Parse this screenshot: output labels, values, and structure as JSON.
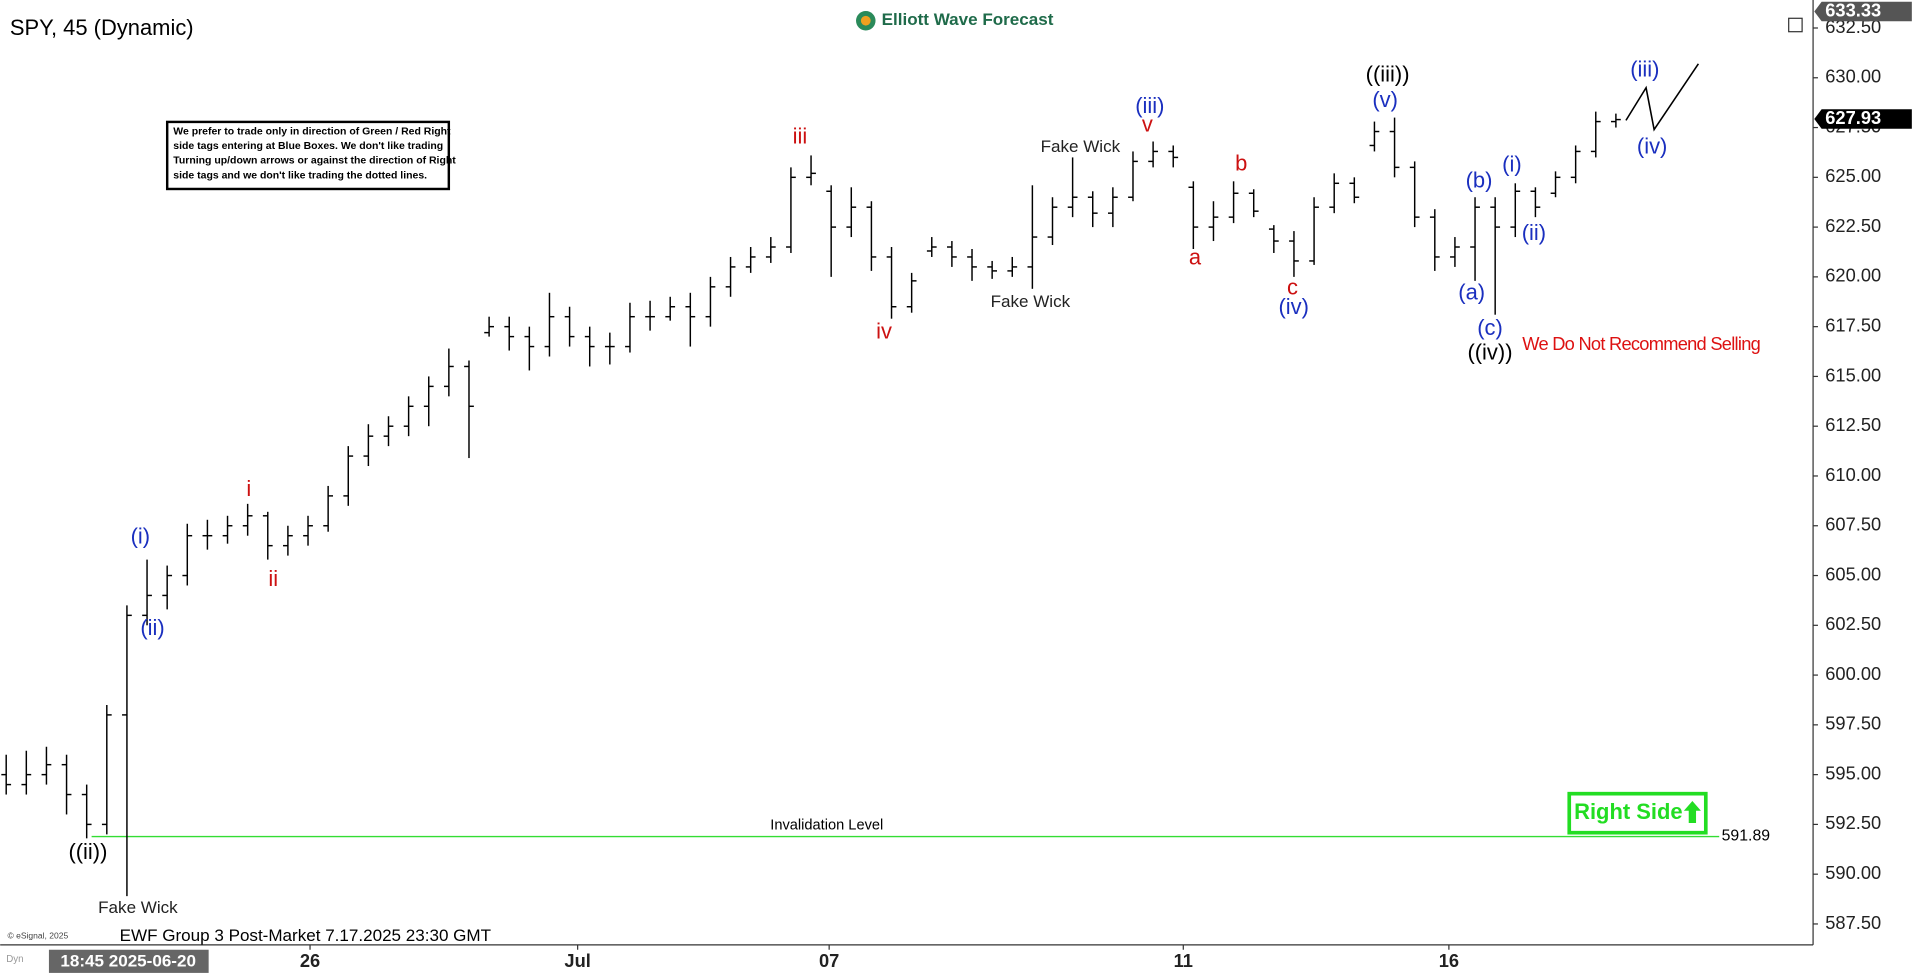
{
  "header": {
    "logo": "Elliott Wave Forecast"
  },
  "chart_data": {
    "type": "ohlc",
    "title": "SPY, 45 (Dynamic)",
    "color": "#000000",
    "open": [
      595,
      594.5,
      595,
      595.5,
      594,
      592.5,
      598,
      603,
      604,
      605,
      607,
      607,
      607.5,
      608,
      606.5,
      607,
      607.5,
      609,
      611,
      612,
      612.5,
      613.5,
      614.5,
      615.5,
      617.2,
      617.5,
      617,
      616.5,
      618,
      617,
      616.5,
      616.5,
      618,
      618,
      618.5,
      618,
      619.5,
      620.5,
      621,
      621.5,
      625,
      624.3,
      622.5,
      623.5,
      621,
      618.5,
      621.3,
      621.5,
      621,
      620.5,
      620.3,
      620.5,
      622,
      623.5,
      624,
      623.2,
      624,
      625.8,
      626.3,
      624.5,
      622.5,
      623,
      624.2,
      622.4,
      621.8,
      620.8,
      623.5,
      624.7,
      626.6,
      627.3,
      625.5,
      623,
      621,
      621.5,
      623.5,
      622.5,
      624.3,
      624.2,
      625,
      626.3,
      627.8
    ],
    "high": [
      596,
      596.2,
      596.4,
      596,
      594.5,
      598.5,
      603.5,
      605.8,
      605.5,
      607.6,
      607.8,
      608,
      608.6,
      608.2,
      607.5,
      608,
      609.5,
      611.5,
      612.6,
      613,
      614,
      615,
      616.4,
      615.8,
      618,
      618,
      617.5,
      619.2,
      618.5,
      617.5,
      617.2,
      618.7,
      618.8,
      619,
      619.2,
      620,
      621,
      621.5,
      622,
      625.5,
      626.1,
      624.6,
      624.5,
      623.8,
      621.5,
      620.2,
      622,
      621.8,
      621.4,
      620.8,
      621,
      624.6,
      624,
      626,
      624.3,
      624.5,
      626.3,
      626.8,
      626.6,
      624.8,
      623.8,
      624.8,
      624.4,
      622.6,
      622.3,
      624,
      625.2,
      625,
      627.8,
      628,
      625.8,
      623.4,
      622,
      624,
      624,
      624.7,
      624.5,
      625.3,
      626.6,
      628.3,
      628.2
    ],
    "low": [
      594,
      594,
      594.5,
      593,
      591.8,
      592,
      588.9,
      602.5,
      603.3,
      604.5,
      606.3,
      606.6,
      607,
      605.8,
      606,
      606.5,
      607.2,
      608.5,
      610.5,
      611.5,
      612,
      612.5,
      614,
      610.9,
      617,
      616.3,
      615.3,
      616,
      616.5,
      615.5,
      615.6,
      616.2,
      617.3,
      617.8,
      616.5,
      617.5,
      619,
      620.2,
      620.7,
      621.2,
      624.6,
      620,
      622,
      620.3,
      617.9,
      618.2,
      621,
      620.5,
      619.8,
      619.9,
      620,
      619.4,
      621.6,
      623,
      622.5,
      622.5,
      623.8,
      625.5,
      625.5,
      621.4,
      621.8,
      622.7,
      623,
      621.2,
      620,
      620.6,
      623.2,
      623.7,
      626.3,
      625,
      622.5,
      620.3,
      620.5,
      619.8,
      618.1,
      622,
      623,
      624,
      624.7,
      626,
      627.5
    ],
    "close": [
      594.5,
      595,
      595.5,
      594,
      592.5,
      598,
      603,
      604,
      605,
      607,
      607,
      607.5,
      608,
      606.5,
      607,
      607.5,
      609,
      611,
      612,
      612.5,
      613.5,
      614.5,
      615.5,
      613.5,
      617.5,
      617,
      616.5,
      618,
      617,
      616.5,
      616.5,
      618,
      618,
      618.5,
      618,
      619.5,
      620.5,
      621,
      621.5,
      625,
      625.2,
      622.5,
      623.5,
      621,
      618.5,
      619.8,
      621.5,
      621,
      620.5,
      620.3,
      620.5,
      622,
      623.5,
      624,
      623.2,
      624,
      625.8,
      626.3,
      626,
      622.5,
      623,
      624.2,
      623.3,
      621.8,
      620.8,
      623.5,
      624.7,
      624,
      627.3,
      625.5,
      623,
      621,
      621.5,
      623.5,
      622.5,
      624.3,
      623.5,
      625,
      626.3,
      627.8,
      627.9
    ],
    "xlim": [
      -0.3,
      89.8
    ],
    "xticks": [
      {
        "value": 15.1,
        "label": "26"
      },
      {
        "value": 28.4,
        "label": "Jul"
      },
      {
        "value": 40.9,
        "label": "07"
      },
      {
        "value": 58.5,
        "label": "11"
      },
      {
        "value": 71.7,
        "label": "16"
      }
    ],
    "ylim": [
      586.45,
      633.6
    ],
    "yticks": [
      {
        "value": 587.5,
        "label": "587.50"
      },
      {
        "value": 590,
        "label": "590.00"
      },
      {
        "value": 592.5,
        "label": "592.50"
      },
      {
        "value": 595,
        "label": "595.00"
      },
      {
        "value": 597.5,
        "label": "597.50"
      },
      {
        "value": 600,
        "label": "600.00"
      },
      {
        "value": 602.5,
        "label": "602.50"
      },
      {
        "value": 605,
        "label": "605.00"
      },
      {
        "value": 607.5,
        "label": "607.50"
      },
      {
        "value": 610,
        "label": "610.00"
      },
      {
        "value": 612.5,
        "label": "612.50"
      },
      {
        "value": 615,
        "label": "615.00"
      },
      {
        "value": 617.5,
        "label": "617.50"
      },
      {
        "value": 620,
        "label": "620.00"
      },
      {
        "value": 622.5,
        "label": "622.50"
      },
      {
        "value": 625,
        "label": "625.00"
      },
      {
        "value": 627.5,
        "label": "627.50"
      },
      {
        "value": 630,
        "label": "630.00"
      },
      {
        "value": 632.5,
        "label": "632.50"
      }
    ],
    "grid": false,
    "top_price": 633.33,
    "last_price": 627.93,
    "invalidation": {
      "level": 591.89,
      "label": "Invalidation Level",
      "color": "#33dd33"
    },
    "projection": {
      "x": [
        80.5,
        81.5,
        81.9,
        84.1
      ],
      "values": [
        627.86,
        629.5,
        627.4,
        630.7
      ]
    },
    "note": [
      "We prefer to trade only in direction of Green / Red Right",
      "side tags entering at Blue Boxes. We don't like trading",
      "Turning up/down arrows or against the direction of Right",
      "side tags and we don't like trading the dotted lines."
    ],
    "right_side": {
      "text": "Right Side",
      "color": "#22dd22"
    },
    "annotations": [
      {
        "text": "((ii))",
        "color": "#000000"
      },
      {
        "text": "Fake Wick",
        "color": "#222222"
      },
      {
        "text": "((iii))",
        "color": "#000000"
      },
      {
        "text": "((iv))",
        "color": "#000000"
      },
      {
        "text": "Fake Wick",
        "color": "#222222"
      },
      {
        "text": "Fake Wick",
        "color": "#222222"
      },
      {
        "text": "(i)",
        "color": "#1a2fbf"
      },
      {
        "text": "(ii)",
        "color": "#1a2fbf"
      },
      {
        "text": "(iii)",
        "color": "#1a2fbf"
      },
      {
        "text": "(v)",
        "color": "#1a2fbf"
      },
      {
        "text": "(iv)",
        "color": "#1a2fbf"
      },
      {
        "text": "(a)",
        "color": "#1a2fbf"
      },
      {
        "text": "(b)",
        "color": "#1a2fbf"
      },
      {
        "text": "(c)",
        "color": "#1a2fbf"
      },
      {
        "text": "(i)",
        "color": "#1a2fbf"
      },
      {
        "text": "(ii)",
        "color": "#1a2fbf"
      },
      {
        "text": "(iii)",
        "color": "#1a2fbf"
      },
      {
        "text": "(iv)",
        "color": "#1a2fbf"
      },
      {
        "text": "i",
        "color": "#cc1111"
      },
      {
        "text": "ii",
        "color": "#cc1111"
      },
      {
        "text": "iii",
        "color": "#cc1111"
      },
      {
        "text": "iv",
        "color": "#cc1111"
      },
      {
        "text": "v",
        "color": "#cc1111"
      },
      {
        "text": "a",
        "color": "#cc1111"
      },
      {
        "text": "b",
        "color": "#cc1111"
      },
      {
        "text": "c",
        "color": "#cc1111"
      },
      {
        "text": "We Do Not Recommend Selling",
        "color": "#dd1111"
      }
    ],
    "footer": "EWF Group 3 Post-Market 7.17.2025 23:30 GMT",
    "source": "© eSignal, 2025",
    "corner_label": "Dyn",
    "cursor_label": "18:45 2025-06-20"
  }
}
